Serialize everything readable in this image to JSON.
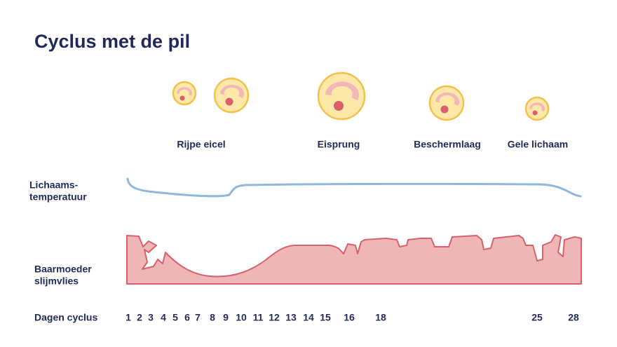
{
  "header": {
    "title": "Cyclus met de pil"
  },
  "stages": [
    "Rijpe eicel",
    "Eisprung",
    "Beschermlaag",
    "Gele lichaam"
  ],
  "rows": {
    "temperature": {
      "lines": [
        "Lichaams-",
        "temperatuur"
      ]
    },
    "lining": {
      "lines": [
        "Baarmoeder",
        "slijmvlies"
      ]
    },
    "days": {
      "label": "Dagen cyclus",
      "numbers": [
        1,
        2,
        3,
        4,
        5,
        6,
        7,
        8,
        9,
        10,
        11,
        12,
        13,
        14,
        15,
        16,
        18,
        25,
        28
      ]
    }
  }
}
